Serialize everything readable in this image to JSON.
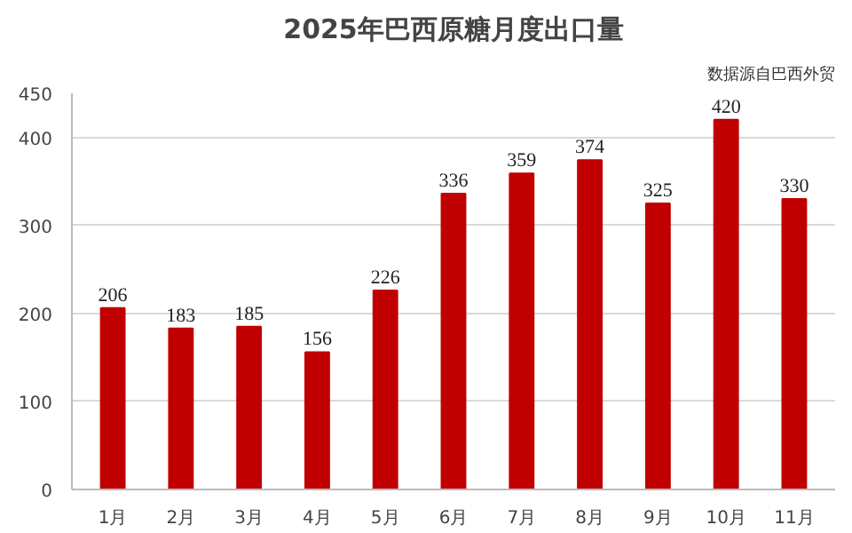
{
  "chart_data": {
    "type": "bar",
    "title": "2025年巴西原糖月度出口量",
    "annotations": [
      "数据源自巴西外贸"
    ],
    "categories": [
      "1月",
      "2月",
      "3月",
      "4月",
      "5月",
      "6月",
      "7月",
      "8月",
      "9月",
      "10月",
      "11月"
    ],
    "values": [
      206,
      183,
      185,
      156,
      226,
      336,
      359,
      374,
      325,
      420,
      330
    ],
    "color": "#c00000",
    "ylim": [
      0,
      450
    ],
    "yticks": [
      0,
      100,
      200,
      300,
      400,
      450
    ],
    "grid": "y",
    "data_labels": true
  }
}
